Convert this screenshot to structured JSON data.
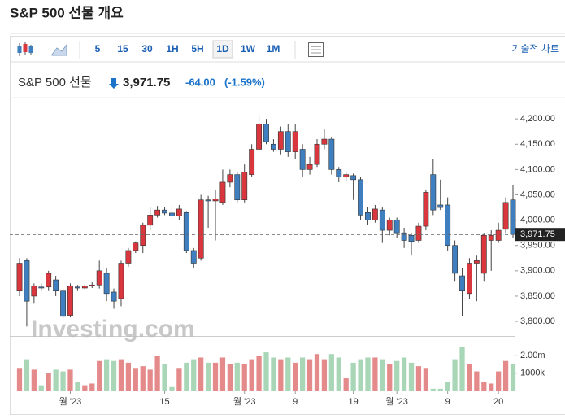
{
  "header": {
    "title": "S&P 500 선물 개요",
    "toolbar": [
      "5",
      "15",
      "30",
      "1H",
      "5H",
      "1D",
      "1W",
      "1M"
    ],
    "active": "1D",
    "technical": "기술적 차트",
    "quote": {
      "name": "S&P 500 선물",
      "price": "3,971.75",
      "change": "-64.00",
      "change_pct": "(-1.59%)"
    },
    "watermark": "Investing.com"
  },
  "chart_data": {
    "type": "candlestick",
    "categories": [
      null,
      null,
      null,
      null,
      null,
      null,
      null,
      "월 '23",
      null,
      null,
      null,
      null,
      null,
      null,
      null,
      null,
      null,
      null,
      null,
      null,
      "15",
      null,
      null,
      null,
      null,
      null,
      null,
      null,
      null,
      null,
      null,
      "월 '23",
      null,
      null,
      null,
      null,
      null,
      null,
      "9",
      null,
      null,
      null,
      null,
      null,
      null,
      null,
      "19",
      null,
      null,
      null,
      null,
      null,
      "월 '23",
      null,
      null,
      null,
      null,
      null,
      null,
      "9",
      null,
      null,
      null,
      null,
      null,
      null,
      "20",
      null,
      null
    ],
    "open": [
      3860,
      3920,
      3850,
      3868,
      3868,
      3882,
      3860,
      3812,
      3868,
      3866,
      3870,
      3872,
      3895,
      3858,
      3845,
      3915,
      3940,
      3950,
      3990,
      4010,
      4020,
      4014,
      4008,
      4015,
      3940,
      3925,
      4040,
      4038,
      4035,
      4075,
      4090,
      4040,
      4090,
      4140,
      4190,
      4150,
      4140,
      4175,
      4135,
      4140,
      4100,
      4110,
      4150,
      4160,
      4100,
      4085,
      4088,
      4080,
      4015,
      4000,
      4020,
      3980,
      4000,
      3975,
      3970,
      3960,
      3988,
      4090,
      4030,
      4030,
      3950,
      3890,
      3855,
      3915,
      3895,
      3960,
      3960,
      3982,
      4040
    ],
    "high": [
      3925,
      3925,
      3875,
      3875,
      3900,
      3890,
      3865,
      3875,
      3872,
      3874,
      3878,
      3920,
      3905,
      3865,
      3920,
      3945,
      3958,
      3995,
      4025,
      4028,
      4025,
      4030,
      4030,
      4018,
      3945,
      4050,
      4048,
      4060,
      4100,
      4100,
      4095,
      4110,
      4150,
      4208,
      4200,
      4160,
      4185,
      4190,
      4190,
      4150,
      4125,
      4160,
      4180,
      4165,
      4105,
      4095,
      4092,
      4085,
      4025,
      4030,
      4025,
      4005,
      4005,
      3985,
      3975,
      3995,
      4060,
      4120,
      4080,
      4045,
      3960,
      3905,
      3925,
      3930,
      3975,
      3980,
      3995,
      4045,
      4070
    ],
    "low": [
      3850,
      3790,
      3835,
      3860,
      3860,
      3850,
      3805,
      3808,
      3860,
      3862,
      3866,
      3865,
      3840,
      3825,
      3830,
      3908,
      3935,
      3935,
      3980,
      4005,
      4010,
      4005,
      4000,
      3935,
      3905,
      3920,
      3985,
      3960,
      4030,
      4065,
      4035,
      4035,
      4085,
      4135,
      4150,
      4135,
      4130,
      4125,
      4120,
      4085,
      4090,
      4105,
      4140,
      4090,
      4075,
      4078,
      4040,
      4000,
      3990,
      3995,
      3955,
      3970,
      3965,
      3945,
      3930,
      3955,
      3980,
      4010,
      4020,
      3940,
      3880,
      3810,
      3845,
      3840,
      3880,
      3900,
      3955,
      3975,
      3965
    ],
    "close": [
      3915,
      3840,
      3870,
      3866,
      3895,
      3860,
      3810,
      3870,
      3866,
      3870,
      3872,
      3900,
      3855,
      3840,
      3915,
      3940,
      3955,
      3990,
      4010,
      4020,
      4014,
      4008,
      4022,
      3940,
      3915,
      4040,
      4038,
      4042,
      4075,
      4090,
      4040,
      4095,
      4140,
      4190,
      4155,
      4140,
      4175,
      4135,
      4175,
      4100,
      4110,
      4150,
      4160,
      4100,
      4085,
      4090,
      4080,
      4010,
      4000,
      4022,
      3980,
      4000,
      3975,
      3960,
      3958,
      3988,
      4055,
      4020,
      4025,
      3950,
      3895,
      3860,
      3915,
      3920,
      3970,
      3970,
      3980,
      4035,
      3971.75
    ],
    "volume": [
      1300000,
      1800000,
      1200000,
      300000,
      1000000,
      1200000,
      1100000,
      1200000,
      500000,
      300000,
      400000,
      1700000,
      1800000,
      1700000,
      1800000,
      1600000,
      1300000,
      1400000,
      1200000,
      2000000,
      1500000,
      200000,
      1300000,
      1600000,
      1800000,
      1900000,
      1600000,
      1600000,
      1900000,
      1500000,
      1600000,
      1500000,
      1800000,
      2000000,
      2200000,
      1900000,
      1800000,
      1900000,
      1600000,
      1900000,
      1800000,
      2100000,
      1800000,
      2100000,
      1900000,
      700000,
      1600000,
      1800000,
      1900000,
      1900000,
      1800000,
      1500000,
      1700000,
      1900000,
      1600000,
      1400000,
      1300000,
      100000,
      100000,
      500000,
      1800000,
      2500000,
      1500000,
      1100000,
      500000,
      400000,
      1100000,
      1700000,
      1500000
    ],
    "up_color": "#d9363e",
    "down_color": "#3f7fbf",
    "volume_up_color": "#e58a8a",
    "volume_down_color": "#a9d6b6",
    "ylim": [
      3776,
      4234
    ],
    "yticks": [
      {
        "value": 3800,
        "label": "3,800.00"
      },
      {
        "value": 3850,
        "label": "3,850.00"
      },
      {
        "value": 3900,
        "label": "3,900.00"
      },
      {
        "value": 3950,
        "label": "3,950.00"
      },
      {
        "value": 4000,
        "label": "4,000.00"
      },
      {
        "value": 4050,
        "label": "4,050.00"
      },
      {
        "value": 4100,
        "label": "4,100.00"
      },
      {
        "value": 4150,
        "label": "4,150.00"
      },
      {
        "value": 4200,
        "label": "4,200.00"
      }
    ],
    "current_price": {
      "value": 3971.75,
      "label": "3,971.75"
    },
    "vlim": [
      0,
      3000000
    ],
    "vticks": [
      {
        "value": 2000000,
        "label": "2.00m"
      },
      {
        "value": 1000000,
        "label": "1000k"
      }
    ]
  }
}
